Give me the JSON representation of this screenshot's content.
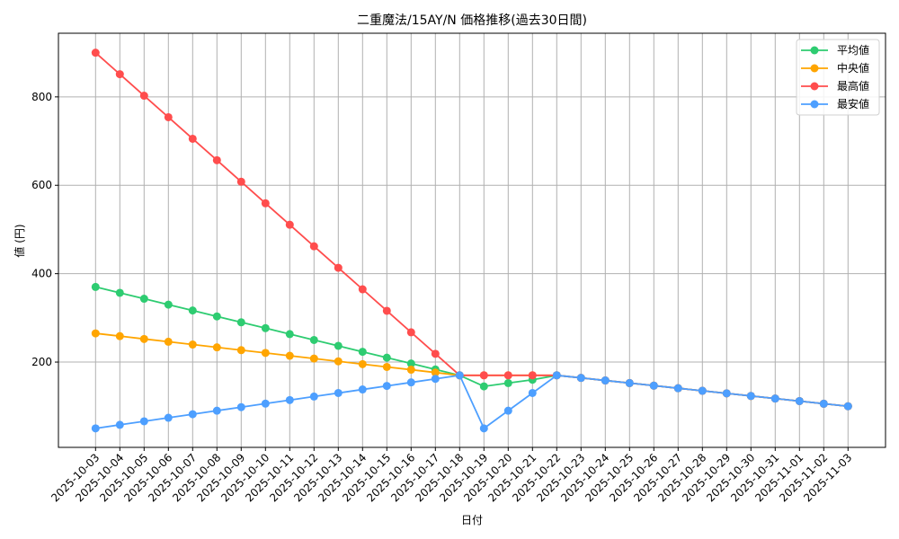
{
  "chart_data": {
    "type": "line",
    "title": "二重魔法/15AY/N 価格推移(過去30日間)",
    "xlabel": "日付",
    "ylabel": "値 (円)",
    "ylim": [
      7,
      944
    ],
    "yticks": [
      200,
      400,
      600,
      800
    ],
    "grid": true,
    "legend_position": "upper right",
    "categories": [
      "2025-10-03",
      "2025-10-04",
      "2025-10-05",
      "2025-10-06",
      "2025-10-07",
      "2025-10-08",
      "2025-10-09",
      "2025-10-10",
      "2025-10-11",
      "2025-10-12",
      "2025-10-13",
      "2025-10-14",
      "2025-10-15",
      "2025-10-16",
      "2025-10-17",
      "2025-10-18",
      "2025-10-19",
      "2025-10-20",
      "2025-10-21",
      "2025-10-22",
      "2025-10-23",
      "2025-10-24",
      "2025-10-25",
      "2025-10-26",
      "2025-10-27",
      "2025-10-28",
      "2025-10-29",
      "2025-10-30",
      "2025-10-31",
      "2025-11-01",
      "2025-11-02",
      "2025-11-03"
    ],
    "series": [
      {
        "name": "平均値",
        "color": "#2ecc71",
        "values": [
          370,
          356.7,
          343.3,
          330,
          316.7,
          303.3,
          290,
          276.7,
          263.3,
          250,
          236.7,
          223.3,
          210,
          196.7,
          183.3,
          170,
          145,
          152.5,
          160,
          170,
          164.2,
          158.3,
          152.5,
          146.7,
          140.8,
          135,
          129.2,
          123.3,
          117.5,
          111.7,
          105.8,
          100
        ]
      },
      {
        "name": "中央値",
        "color": "#ffa500",
        "values": [
          265,
          258.7,
          252.3,
          246,
          239.7,
          233.3,
          227,
          220.7,
          214.3,
          208,
          201.7,
          195.3,
          189,
          182.7,
          176.3,
          170,
          170,
          170,
          170,
          170,
          164.2,
          158.3,
          152.5,
          146.7,
          140.8,
          135,
          129.2,
          123.3,
          117.5,
          111.7,
          105.8,
          100
        ]
      },
      {
        "name": "最高値",
        "color": "#ff4d4d",
        "values": [
          900,
          851.3,
          802.7,
          754,
          705.3,
          656.7,
          608,
          559.3,
          510.7,
          462,
          413.3,
          364.7,
          316,
          267.3,
          218.7,
          170,
          170,
          170,
          170,
          170,
          164.2,
          158.3,
          152.5,
          146.7,
          140.8,
          135,
          129.2,
          123.3,
          117.5,
          111.7,
          105.8,
          100
        ]
      },
      {
        "name": "最安値",
        "color": "#4d9fff",
        "values": [
          50,
          58,
          66,
          74,
          82,
          90,
          98,
          106,
          114,
          122,
          130,
          138,
          146,
          154,
          162,
          170,
          50,
          90,
          130,
          170,
          164.2,
          158.3,
          152.5,
          146.7,
          140.8,
          135,
          129.2,
          123.3,
          117.5,
          111.7,
          105.8,
          100
        ]
      }
    ]
  }
}
